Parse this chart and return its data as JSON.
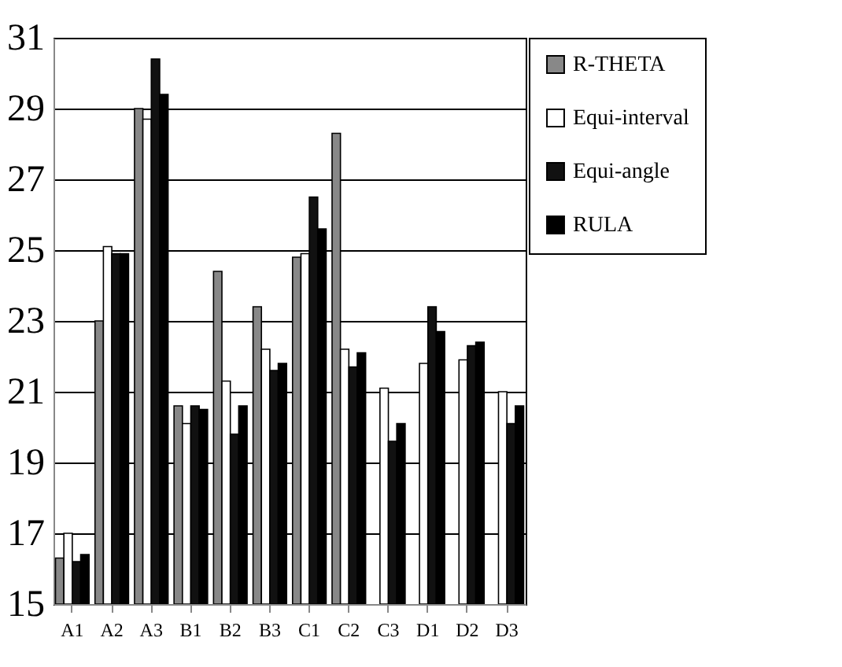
{
  "chart_data": {
    "type": "bar",
    "categories": [
      "A1",
      "A2",
      "A3",
      "B1",
      "B2",
      "B3",
      "C1",
      "C2",
      "C3",
      "D1",
      "D2",
      "D3"
    ],
    "series": [
      {
        "name": "R-THETA",
        "color": "#888888",
        "values": [
          16.3,
          23.0,
          29.0,
          20.6,
          24.4,
          23.4,
          24.8,
          28.3,
          null,
          null,
          null,
          null
        ]
      },
      {
        "name": "Equi-interval",
        "color": "#ffffff",
        "values": [
          17.0,
          25.1,
          28.7,
          20.1,
          21.3,
          22.2,
          24.9,
          22.2,
          21.1,
          21.8,
          21.9,
          21.0
        ]
      },
      {
        "name": "Equi-angle",
        "color": "#111111",
        "values": [
          16.2,
          24.9,
          30.4,
          20.6,
          19.8,
          21.6,
          26.5,
          21.7,
          19.6,
          23.4,
          22.3,
          20.1
        ]
      },
      {
        "name": "RULA",
        "color": "#000000",
        "values": [
          16.4,
          24.9,
          29.4,
          20.5,
          20.6,
          21.8,
          25.6,
          22.1,
          20.1,
          22.7,
          22.4,
          20.6
        ]
      }
    ],
    "ylim": [
      15,
      31
    ],
    "yticks": [
      15,
      17,
      19,
      21,
      23,
      25,
      27,
      29,
      31
    ],
    "grid": "y",
    "legend": "right"
  }
}
